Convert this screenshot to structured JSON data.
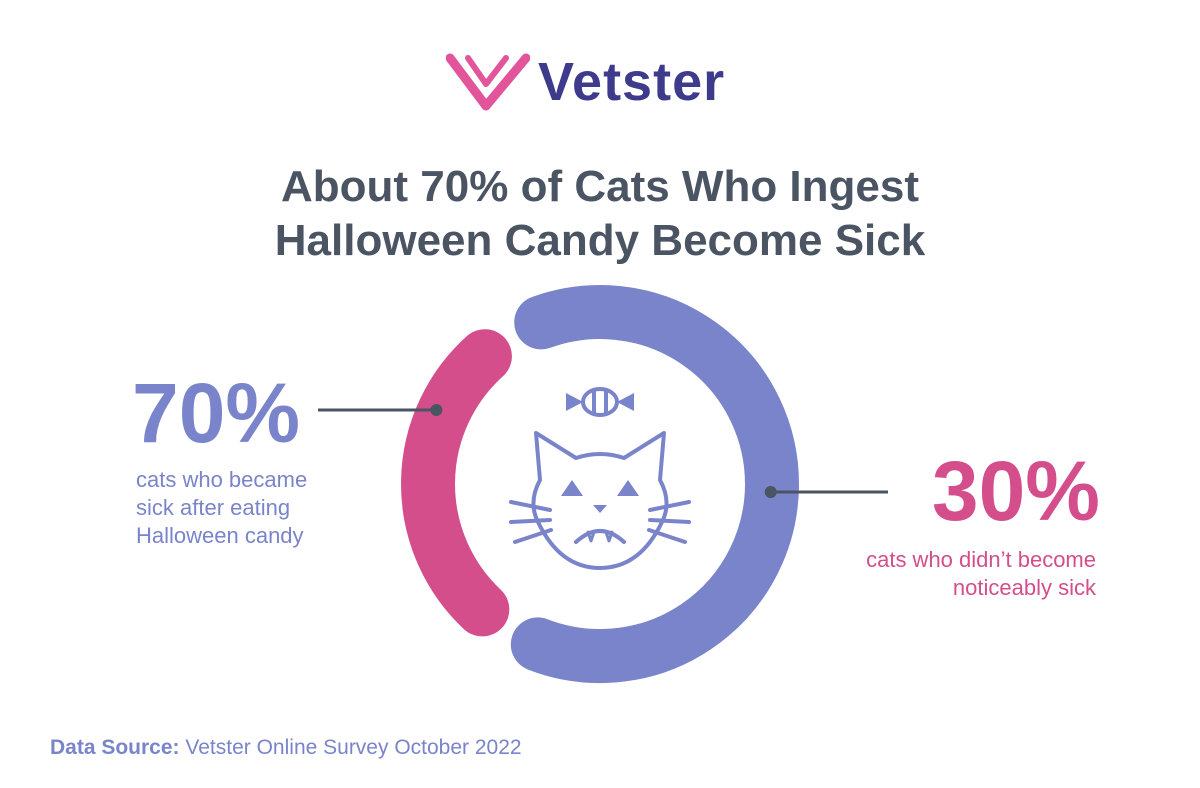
{
  "brand": {
    "name": "Vetster",
    "logo_colors": [
      "#e2559b",
      "#3e3b8c"
    ]
  },
  "title_lines": [
    "About 70% of Cats Who Ingest",
    "Halloween Candy Become Sick"
  ],
  "chart_data": {
    "type": "pie",
    "variant": "donut",
    "title": "About 70% of Cats Who Ingest Halloween Candy Become Sick",
    "slices": [
      {
        "name": "cats who became sick after eating Halloween candy",
        "value": 70,
        "label": "70%",
        "description_lines": [
          "cats who became",
          "sick after eating",
          "Halloween candy"
        ],
        "color": "#7a84cb"
      },
      {
        "name": "cats who didn’t become noticeably sick",
        "value": 30,
        "label": "30%",
        "description_lines": [
          "cats who didn’t become",
          "noticeably sick"
        ],
        "color": "#d44e8c"
      }
    ],
    "center_icon": "sick-cat-with-candy-icon",
    "legend": "none"
  },
  "source": {
    "label": "Data Source:",
    "text": "Vetster Online Survey October 2022"
  },
  "colors": {
    "title": "#4a5462",
    "connector": "#4a5462",
    "icon": "#7a84cb"
  }
}
